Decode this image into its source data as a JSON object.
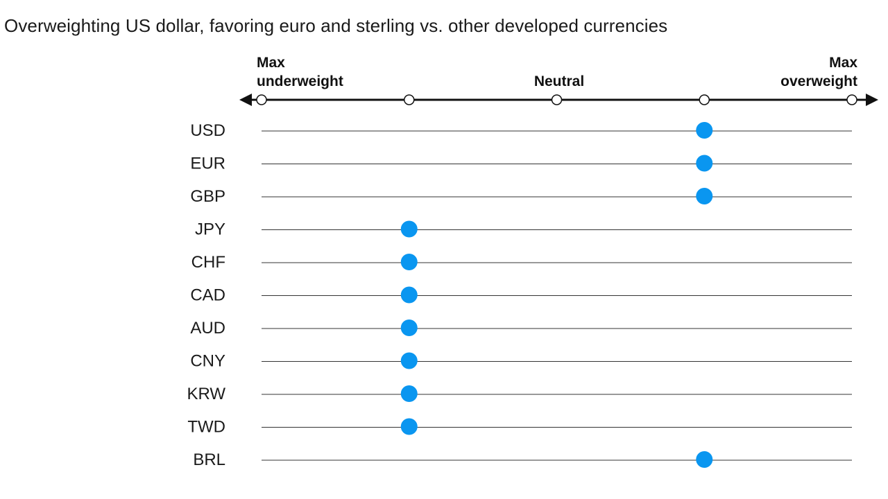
{
  "chart_data": {
    "type": "scatter",
    "title": "Overweighting US dollar, favoring euro and sterling vs. other developed currencies",
    "scale": {
      "levels": [
        -2,
        -1,
        0,
        1,
        2
      ],
      "left_label": [
        "Max",
        "underweight"
      ],
      "center_label": "Neutral",
      "right_label": [
        "Max",
        "overweight"
      ]
    },
    "categories": [
      "USD",
      "EUR",
      "GBP",
      "JPY",
      "CHF",
      "CAD",
      "AUD",
      "CNY",
      "KRW",
      "TWD",
      "BRL"
    ],
    "values": [
      1,
      1,
      1,
      -1,
      -1,
      -1,
      -1,
      -1,
      -1,
      -1,
      1
    ],
    "xlim": [
      -2,
      2
    ],
    "colors": {
      "marker": "#0a96f0",
      "axis": "#111111",
      "row_line": "#333333"
    }
  }
}
